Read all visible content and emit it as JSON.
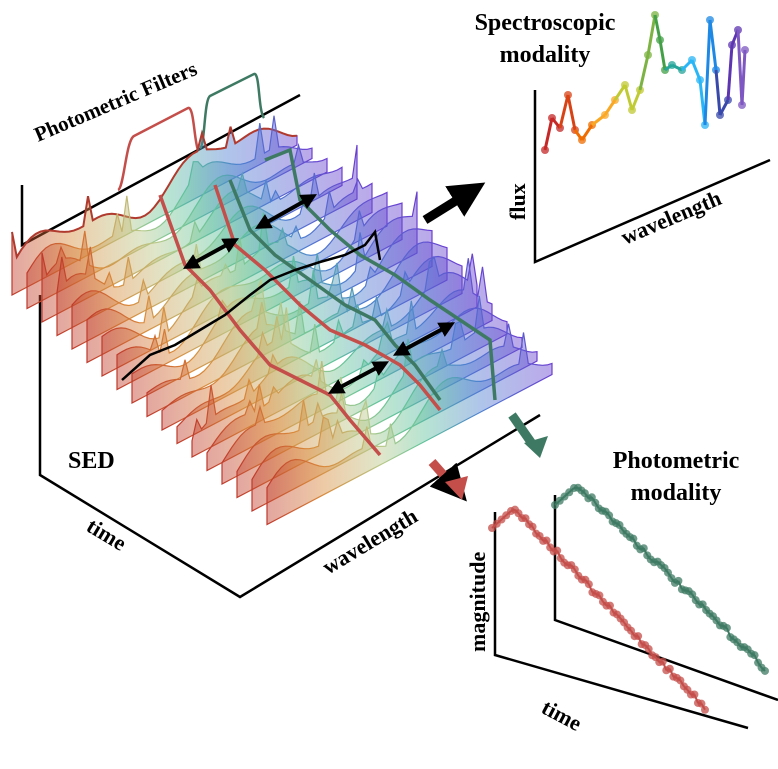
{
  "filters_title": "Photometric Filters",
  "spectroscopic_title": [
    "Spectroscopic",
    "modality"
  ],
  "spec_y_label": "flux",
  "spec_x_label": "wavelength",
  "sed_label": "SED",
  "sed_time_label": "time",
  "sed_wavelength_label": "wavelength",
  "photometric_title": [
    "Photometric",
    "modality"
  ],
  "phot_y_label": "magnitude",
  "phot_x_label": "time"
}
